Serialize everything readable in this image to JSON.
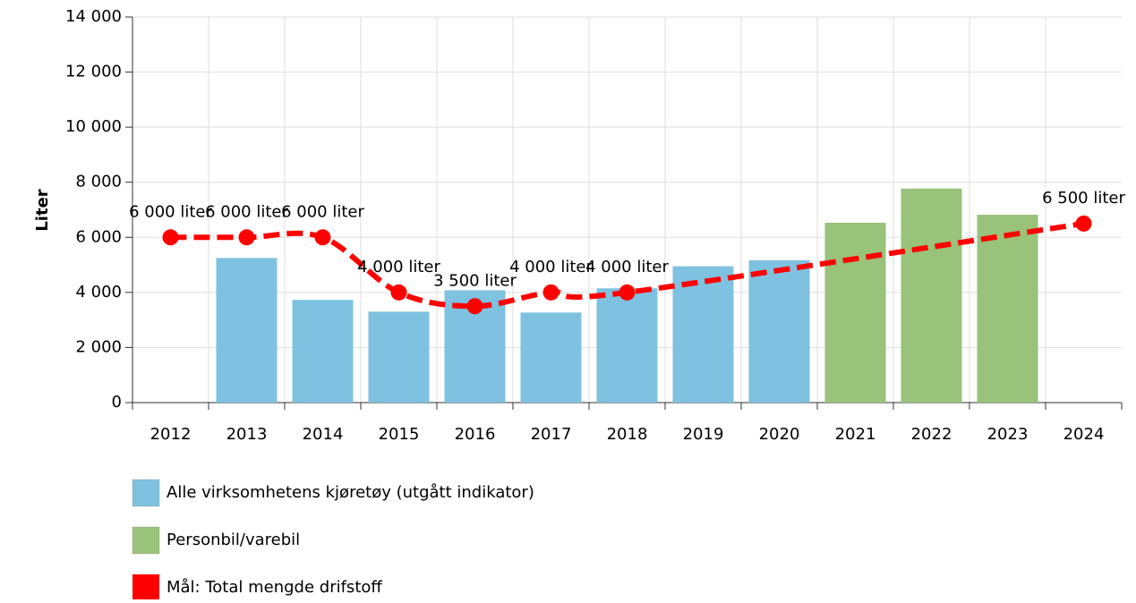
{
  "chart_data": {
    "type": "bar",
    "y_axis_label": "Liter",
    "categories": [
      "2012",
      "2013",
      "2014",
      "2015",
      "2016",
      "2017",
      "2018",
      "2019",
      "2020",
      "2021",
      "2022",
      "2023",
      "2024"
    ],
    "ylim": [
      0,
      14000
    ],
    "yticks": [
      0,
      {
        "value": 2000,
        "label": "2 000"
      },
      {
        "value": 4000,
        "label": "4 000"
      },
      {
        "value": 6000,
        "label": "6 000"
      },
      {
        "value": 8000,
        "label": "8 000"
      },
      {
        "value": 10000,
        "label": "10 000"
      },
      {
        "value": 12000,
        "label": "12 000"
      },
      {
        "value": 14000,
        "label": "14 000"
      }
    ],
    "grid": true,
    "series": [
      {
        "name": "Alle virksomhetens kjøretøy (utgått indikator)",
        "type": "bar",
        "color": "#7fc1e0",
        "values": [
          null,
          5250,
          3730,
          3300,
          4080,
          3270,
          4150,
          4950,
          5170,
          null,
          null,
          null,
          null
        ]
      },
      {
        "name": "Personbil/varebil",
        "type": "bar",
        "color": "#99c27a",
        "values": [
          null,
          null,
          null,
          null,
          null,
          null,
          null,
          null,
          null,
          6530,
          7770,
          6820,
          null
        ]
      },
      {
        "name": "Mål: Total mengde drifstoff",
        "type": "line",
        "color": "#ff0000",
        "dashed": true,
        "connect_gaps": true,
        "smooth": true,
        "values": [
          6000,
          6000,
          6000,
          4000,
          3500,
          4000,
          4000,
          null,
          null,
          null,
          null,
          null,
          6500
        ],
        "value_labels": [
          "6 000 liter",
          "6 000 liter",
          "6 000 liter",
          "4 000 liter",
          "3 500 liter",
          "4 000 liter",
          "4 000 liter",
          null,
          null,
          null,
          null,
          null,
          "6 500 liter"
        ]
      }
    ]
  }
}
